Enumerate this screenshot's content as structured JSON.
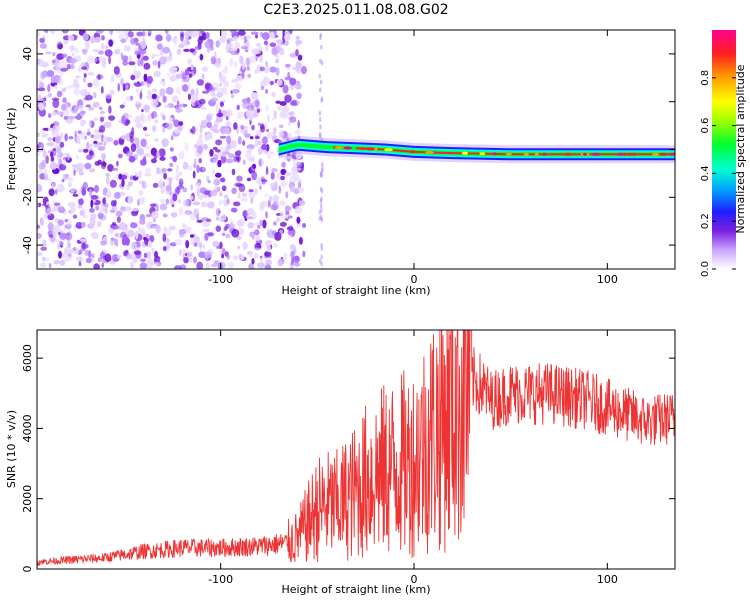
{
  "title": "C2E3.2025.011.08.08.G02",
  "chart_data": [
    {
      "type": "heatmap",
      "title": "C2E3.2025.011.08.08.G02",
      "xlabel": "Height of straight line (km)",
      "ylabel": "Frequency (Hz)",
      "xlim": [
        -195,
        135
      ],
      "ylim": [
        -50,
        50
      ],
      "x_ticks": [
        -100,
        0,
        100
      ],
      "y_ticks": [
        -40,
        -20,
        0,
        20,
        40
      ],
      "x_tick_labels": [
        "-100",
        "0",
        "100"
      ],
      "y_tick_labels": [
        "-40",
        "-20",
        "0",
        "20",
        "40"
      ],
      "noise_region_x": [
        -195,
        -62
      ],
      "signal_track": [
        {
          "x": -70,
          "y": 0
        },
        {
          "x": -60,
          "y": 2
        },
        {
          "x": -45,
          "y": 1
        },
        {
          "x": -30,
          "y": 0.5
        },
        {
          "x": -15,
          "y": 0
        },
        {
          "x": 0,
          "y": -1
        },
        {
          "x": 20,
          "y": -1.5
        },
        {
          "x": 50,
          "y": -2
        },
        {
          "x": 80,
          "y": -2
        },
        {
          "x": 100,
          "y": -2
        },
        {
          "x": 135,
          "y": -2
        }
      ],
      "colorbar": {
        "label": "Normalized spectral amplitude",
        "range": [
          0,
          1
        ],
        "ticks": [
          0.0,
          0.2,
          0.4,
          0.6,
          0.8
        ],
        "tick_labels": [
          "0.0",
          "0.2",
          "0.4",
          "0.6",
          "0.8"
        ]
      },
      "grid": false
    },
    {
      "type": "line",
      "xlabel": "Height of straight line (km)",
      "ylabel": "SNR (10 * v/v)",
      "xlim": [
        -195,
        135
      ],
      "ylim": [
        0,
        6800
      ],
      "x_ticks": [
        -100,
        0,
        100
      ],
      "y_ticks": [
        0,
        2000,
        4000,
        6000
      ],
      "x_tick_labels": [
        "-100",
        "0",
        "100"
      ],
      "y_tick_labels": [
        "0",
        "2000",
        "4000",
        "6000"
      ],
      "series": [
        {
          "color": "#ee3333",
          "x": [
            -195,
            -180,
            -160,
            -140,
            -120,
            -100,
            -80,
            -65,
            -60,
            -55,
            -50,
            -45,
            -40,
            -35,
            -30,
            -25,
            -20,
            -15,
            -10,
            -5,
            0,
            5,
            10,
            15,
            20,
            25,
            30,
            35,
            40,
            50,
            60,
            70,
            80,
            90,
            100,
            110,
            120,
            135
          ],
          "values": [
            200,
            250,
            320,
            500,
            600,
            600,
            650,
            750,
            900,
            1300,
            1700,
            1800,
            1800,
            2000,
            2200,
            2500,
            2700,
            2800,
            2900,
            3000,
            3100,
            3500,
            3900,
            4300,
            4700,
            5000,
            5400,
            5200,
            4800,
            5000,
            5000,
            5000,
            4900,
            4800,
            4600,
            4400,
            4200,
            4300
          ]
        }
      ],
      "grid": false
    }
  ]
}
